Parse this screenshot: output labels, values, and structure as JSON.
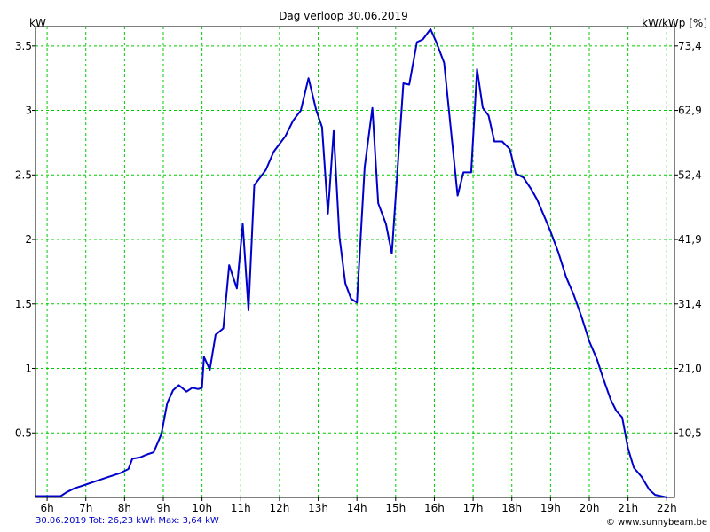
{
  "chart_data": {
    "type": "line",
    "title": "Dag  verloop 30.06.2019",
    "ylabel": "kW",
    "y2label": "kW/kWp [%]",
    "xlabel": "",
    "x_ticks": [
      "6h",
      "7h",
      "8h",
      "9h",
      "10h",
      "11h",
      "12h",
      "13h",
      "14h",
      "15h",
      "16h",
      "17h",
      "18h",
      "19h",
      "20h",
      "21h",
      "22h"
    ],
    "y_ticks": [
      "0.5",
      "1",
      "1.5",
      "2",
      "2.5",
      "3",
      "3.5"
    ],
    "y2_ticks": [
      "10,5",
      "21,0",
      "31,4",
      "41,9",
      "52,4",
      "62,9",
      "73,4"
    ],
    "xlim": [
      5.7,
      22.2
    ],
    "ylim": [
      0,
      3.65
    ],
    "grid": true,
    "series_color": "#0000cc",
    "grid_color": "#00cc00",
    "series": [
      {
        "x": [
          5.7,
          6.35,
          6.5,
          6.7,
          6.9,
          7.1,
          7.3,
          7.6,
          7.9,
          8.1,
          8.2,
          8.4,
          8.55,
          8.75,
          8.95,
          9.1,
          9.25,
          9.4,
          9.6,
          9.75,
          9.9,
          10.0,
          10.05,
          10.2,
          10.35,
          10.55,
          10.7,
          10.9,
          11.05,
          11.2,
          11.35,
          11.5,
          11.65,
          11.85,
          12.0,
          12.15,
          12.35,
          12.55,
          12.75,
          12.95,
          13.1,
          13.25,
          13.4,
          13.55,
          13.7,
          13.85,
          14.0,
          14.2,
          14.4,
          14.55,
          14.75,
          14.9,
          15.05,
          15.2,
          15.35,
          15.55,
          15.7,
          15.9,
          16.05,
          16.25,
          16.6,
          16.75,
          16.95,
          17.1,
          17.25,
          17.4,
          17.55,
          17.75,
          17.95,
          18.1,
          18.3,
          18.5,
          18.65,
          18.85,
          19.0,
          19.2,
          19.4,
          19.6,
          19.8,
          20.0,
          20.2,
          20.35,
          20.55,
          20.7,
          20.85,
          21.0,
          21.15,
          21.35,
          21.55,
          21.7,
          21.85,
          22.0
        ],
        "values": [
          0.01,
          0.01,
          0.04,
          0.07,
          0.09,
          0.11,
          0.13,
          0.16,
          0.19,
          0.22,
          0.3,
          0.31,
          0.33,
          0.35,
          0.49,
          0.73,
          0.83,
          0.87,
          0.82,
          0.85,
          0.84,
          0.85,
          1.09,
          0.99,
          1.26,
          1.31,
          1.8,
          1.62,
          2.12,
          1.45,
          2.42,
          2.48,
          2.54,
          2.68,
          2.74,
          2.8,
          2.92,
          3.0,
          3.25,
          3.0,
          2.87,
          2.2,
          2.84,
          2.02,
          1.66,
          1.54,
          1.51,
          2.56,
          3.02,
          2.28,
          2.12,
          1.89,
          2.55,
          3.21,
          3.2,
          3.53,
          3.55,
          3.63,
          3.53,
          3.37,
          2.34,
          2.52,
          2.52,
          3.32,
          3.02,
          2.96,
          2.76,
          2.76,
          2.7,
          2.51,
          2.48,
          2.39,
          2.31,
          2.17,
          2.06,
          1.9,
          1.71,
          1.57,
          1.4,
          1.21,
          1.07,
          0.93,
          0.76,
          0.67,
          0.62,
          0.38,
          0.23,
          0.16,
          0.06,
          0.02,
          0.01,
          0.0
        ]
      }
    ]
  },
  "footer": {
    "summary": "30.06.2019 Tot: 26,23 kWh Max: 3,64 kW",
    "credit": "© www.sunnybeam.be"
  }
}
